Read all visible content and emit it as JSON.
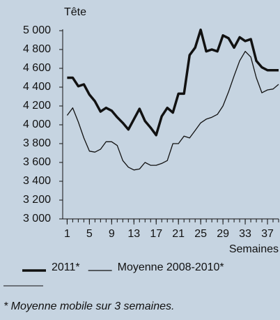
{
  "chart_data": {
    "type": "line",
    "y_label": "Tête",
    "x_label": "Semaines",
    "x": [
      1,
      2,
      3,
      4,
      5,
      6,
      7,
      8,
      9,
      10,
      11,
      12,
      13,
      14,
      15,
      16,
      17,
      18,
      19,
      20,
      21,
      22,
      23,
      24,
      25,
      26,
      27,
      28,
      29,
      30,
      31,
      32,
      33,
      34,
      35,
      36,
      37,
      38,
      39
    ],
    "series": [
      {
        "name": "2011*",
        "color": "#111111",
        "width": 3.5,
        "values": [
          4500,
          4500,
          4410,
          4430,
          4320,
          4250,
          4140,
          4180,
          4150,
          4080,
          4020,
          3950,
          4060,
          4170,
          4040,
          3970,
          3890,
          4090,
          4180,
          4130,
          4330,
          4330,
          4740,
          4820,
          5010,
          4780,
          4800,
          4780,
          4950,
          4920,
          4820,
          4930,
          4890,
          4910,
          4680,
          4610,
          4580,
          4580,
          4580
        ]
      },
      {
        "name": "Moyenne 2008-2010*",
        "color": "#111111",
        "width": 1.3,
        "values": [
          4100,
          4180,
          4030,
          3860,
          3720,
          3710,
          3740,
          3820,
          3820,
          3780,
          3620,
          3550,
          3520,
          3530,
          3600,
          3570,
          3570,
          3590,
          3620,
          3800,
          3800,
          3880,
          3860,
          3940,
          4020,
          4060,
          4080,
          4110,
          4200,
          4350,
          4520,
          4680,
          4780,
          4720,
          4500,
          4340,
          4370,
          4380,
          4430
        ]
      }
    ],
    "xlim": [
      0.2,
      39
    ],
    "xticks": [
      1,
      5,
      9,
      13,
      17,
      21,
      25,
      29,
      33,
      37
    ],
    "ylim": [
      3000,
      5000
    ],
    "yticks": [
      {
        "value": 3000,
        "label": "3 000"
      },
      {
        "value": 3200,
        "label": "3 200"
      },
      {
        "value": 3400,
        "label": "3 400"
      },
      {
        "value": 3600,
        "label": "3 600"
      },
      {
        "value": 3800,
        "label": "3 800"
      },
      {
        "value": 4000,
        "label": "4 000"
      },
      {
        "value": 4200,
        "label": "4 200"
      },
      {
        "value": 4400,
        "label": "4 400"
      },
      {
        "value": 4600,
        "label": "4 600"
      },
      {
        "value": 4800,
        "label": "4 800"
      },
      {
        "value": 5000,
        "label": "5 000"
      }
    ],
    "legend": "bottom",
    "footnote": "* Moyenne mobile sur 3 semaines."
  }
}
